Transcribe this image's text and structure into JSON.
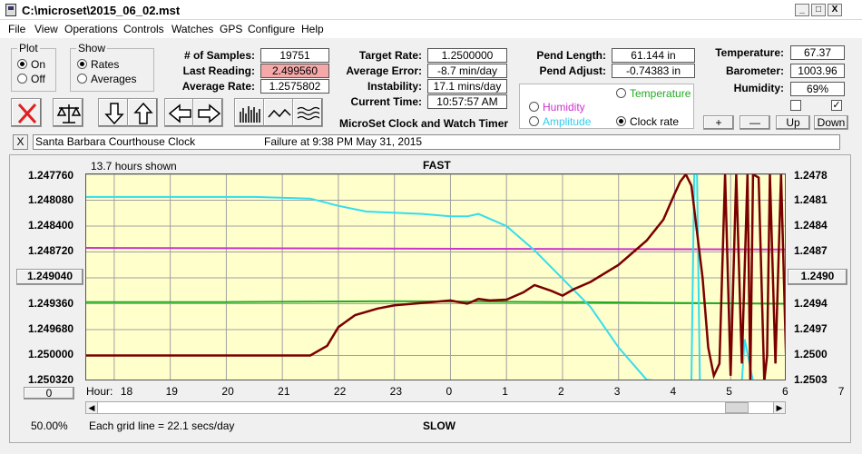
{
  "window": {
    "title": "C:\\microset\\2015_06_02.mst",
    "min": "_",
    "max": "□",
    "close": "X"
  },
  "menu": [
    "File",
    "View",
    "Operations",
    "Controls",
    "Watches",
    "GPS",
    "Configure",
    "Help"
  ],
  "plot_group": {
    "title": "Plot",
    "options": [
      "On",
      "Off"
    ],
    "selected": "On"
  },
  "show_group": {
    "title": "Show",
    "options": [
      "Rates",
      "Averages"
    ],
    "selected": "Rates"
  },
  "stats": {
    "samples_label": "# of Samples:",
    "samples": "19751",
    "last_label": "Last Reading:",
    "last": "2.499560",
    "avg_label": "Average Rate:",
    "avg": "1.2575802"
  },
  "rates": {
    "target_label": "Target Rate:",
    "target": "1.2500000",
    "avgerr_label": "Average Error:",
    "avgerr": "-8.7 min/day",
    "instab_label": "Instability:",
    "instab": "17.1 mins/day",
    "time_label": "Current Time:",
    "time": "10:57:57 AM"
  },
  "caption": "MicroSet Clock and Watch Timer",
  "pendulum": {
    "len_label": "Pend Length:",
    "len": "61.144 in",
    "adj_label": "Pend Adjust:",
    "adj": "-0.74383 in"
  },
  "sensor_select": {
    "temperature": "Temperature",
    "humidity": "Humidity",
    "amplitude": "Amplitude",
    "clock_rate": "Clock rate",
    "selected": "Clock rate"
  },
  "environment": {
    "temp_label": "Temperature:",
    "temp": "67.37",
    "baro_label": "Barometer:",
    "baro": "1003.96",
    "hum_label": "Humidity:",
    "hum": "69%",
    "check1": "",
    "check2": "✓",
    "btn_plus": "+",
    "btn_minus": "—",
    "btn_up": "Up",
    "btn_down": "Down"
  },
  "info": {
    "close": "X",
    "clock_name": "Santa Barbara Courthouse Clock",
    "status": "Failure at 9:38 PM May 31, 2015"
  },
  "graph": {
    "hours_shown": "13.7 hours shown",
    "top_label": "FAST",
    "bottom_label": "SLOW",
    "left_center_button": "1.249040",
    "right_center_button": "1.2490",
    "left_bottom_button": "0",
    "hour_label": "Hour:",
    "zoom": "50.00%",
    "grid_note": "Each grid line = 22.1 secs/day",
    "colors": {
      "background": "#ffffcc",
      "grid": "#a0a0a0",
      "rate": "#7a0000",
      "amplitude": "#33ddee",
      "humidity": "#cc33cc",
      "temperature": "#22aa22"
    }
  },
  "chart_data": {
    "type": "line",
    "left_axis_ticks": [
      "1.247760",
      "1.248080",
      "1.248400",
      "1.248720",
      "1.249040",
      "1.249360",
      "1.249680",
      "1.250000",
      "1.250320"
    ],
    "right_axis_ticks": [
      "1.2478",
      "1.2481",
      "1.2484",
      "1.2487",
      "1.2490",
      "1.2494",
      "1.2497",
      "1.2500",
      "1.2503"
    ],
    "x_ticks": [
      "18",
      "19",
      "20",
      "21",
      "22",
      "23",
      "0",
      "1",
      "2",
      "3",
      "4",
      "5",
      "6",
      "7"
    ],
    "ylim": [
      1.25032,
      1.24776
    ],
    "series": [
      {
        "name": "Clock rate",
        "x": [
          17.5,
          18.5,
          19.5,
          20.5,
          21.0,
          21.5,
          21.8,
          22.0,
          22.3,
          22.7,
          23.0,
          23.5,
          24.0,
          24.3,
          24.5,
          24.7,
          25.0,
          25.3,
          25.5,
          25.8,
          26.0,
          26.2,
          26.5,
          27.0,
          27.5,
          27.8,
          27.9,
          28.0,
          28.1,
          28.2,
          28.3,
          28.5,
          28.6,
          28.7,
          28.8,
          28.9,
          29.0,
          29.1,
          29.2,
          29.3,
          29.35,
          29.4,
          29.5,
          29.6,
          29.65,
          29.7,
          29.8,
          29.9,
          30.0
        ],
        "y": [
          1.25,
          1.25,
          1.25,
          1.25,
          1.25,
          1.25,
          1.24988,
          1.24965,
          1.2495,
          1.24942,
          1.24938,
          1.24935,
          1.24932,
          1.24936,
          1.2493,
          1.24932,
          1.24931,
          1.24922,
          1.24913,
          1.2492,
          1.24926,
          1.24918,
          1.24909,
          1.24888,
          1.24858,
          1.24832,
          1.24816,
          1.248,
          1.24785,
          1.24776,
          1.2479,
          1.24905,
          1.2499,
          1.25025,
          1.2501,
          1.24776,
          1.25025,
          1.24776,
          1.2501,
          1.24776,
          1.25032,
          1.24776,
          1.2478,
          1.25032,
          1.25,
          1.24776,
          1.2501,
          1.24776,
          1.25032
        ]
      },
      {
        "name": "Amplitude",
        "x": [
          17.5,
          20.5,
          21.5,
          22.0,
          22.5,
          23.5,
          24.0,
          24.3,
          24.5,
          25.0,
          25.5,
          26.0,
          26.5,
          27.0,
          27.5,
          27.8,
          28.0,
          28.3,
          28.35,
          28.4,
          28.45,
          28.5,
          29.0,
          29.2,
          29.25,
          29.4,
          30.0
        ],
        "y": [
          1.24804,
          1.24804,
          1.24806,
          1.24815,
          1.24822,
          1.24825,
          1.24828,
          1.24828,
          1.24825,
          1.2484,
          1.2487,
          1.24905,
          1.2494,
          1.2499,
          1.2503,
          1.25032,
          1.25032,
          1.25032,
          1.24776,
          1.24776,
          1.25032,
          1.25032,
          1.25032,
          1.25032,
          1.2498,
          1.25032,
          1.25032
        ]
      },
      {
        "name": "Humidity",
        "x": [
          17.5,
          30.0
        ],
        "y": [
          1.24867,
          1.24869
        ]
      },
      {
        "name": "Temperature",
        "x": [
          17.5,
          20.0,
          23.0,
          26.0,
          28.0,
          30.0
        ],
        "y": [
          1.24934,
          1.24934,
          1.24933,
          1.24934,
          1.24935,
          1.24936
        ]
      }
    ]
  }
}
